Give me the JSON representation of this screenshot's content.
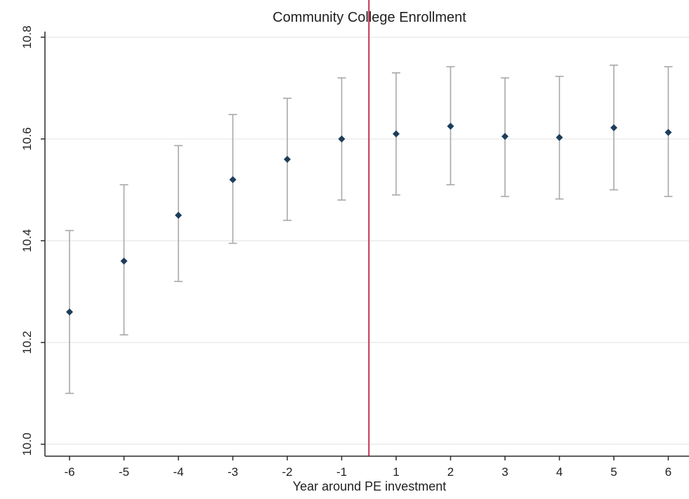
{
  "chart_data": {
    "type": "scatter",
    "title": "Community College Enrollment",
    "xlabel": "Year around PE investment",
    "ylabel": "",
    "categories": [
      "-6",
      "-5",
      "-4",
      "-3",
      "-2",
      "-1",
      "1",
      "2",
      "3",
      "4",
      "5",
      "6"
    ],
    "values": [
      10.26,
      10.36,
      10.45,
      10.52,
      10.56,
      10.6,
      10.61,
      10.625,
      10.605,
      10.603,
      10.622,
      10.613
    ],
    "ci_lower": [
      10.1,
      10.215,
      10.32,
      10.395,
      10.44,
      10.48,
      10.49,
      10.51,
      10.487,
      10.482,
      10.5,
      10.487
    ],
    "ci_upper": [
      10.42,
      10.51,
      10.587,
      10.648,
      10.68,
      10.72,
      10.73,
      10.742,
      10.72,
      10.723,
      10.745,
      10.742
    ],
    "ylim": [
      10.0,
      10.8
    ],
    "yticks": [
      10.0,
      10.2,
      10.4,
      10.6,
      10.8
    ],
    "ytick_labels": [
      "10.0",
      "10.2",
      "10.4",
      "10.6",
      "10.8"
    ],
    "grid": "horizontal",
    "reference_line": {
      "between": [
        "-1",
        "1"
      ],
      "orientation": "vertical"
    },
    "colors": {
      "point": "#1c3d5a",
      "error_bar": "#a8a8a8",
      "reference_line": "#c8305a",
      "grid": "#e6e6e6",
      "axis": "#2b2b2b"
    }
  }
}
